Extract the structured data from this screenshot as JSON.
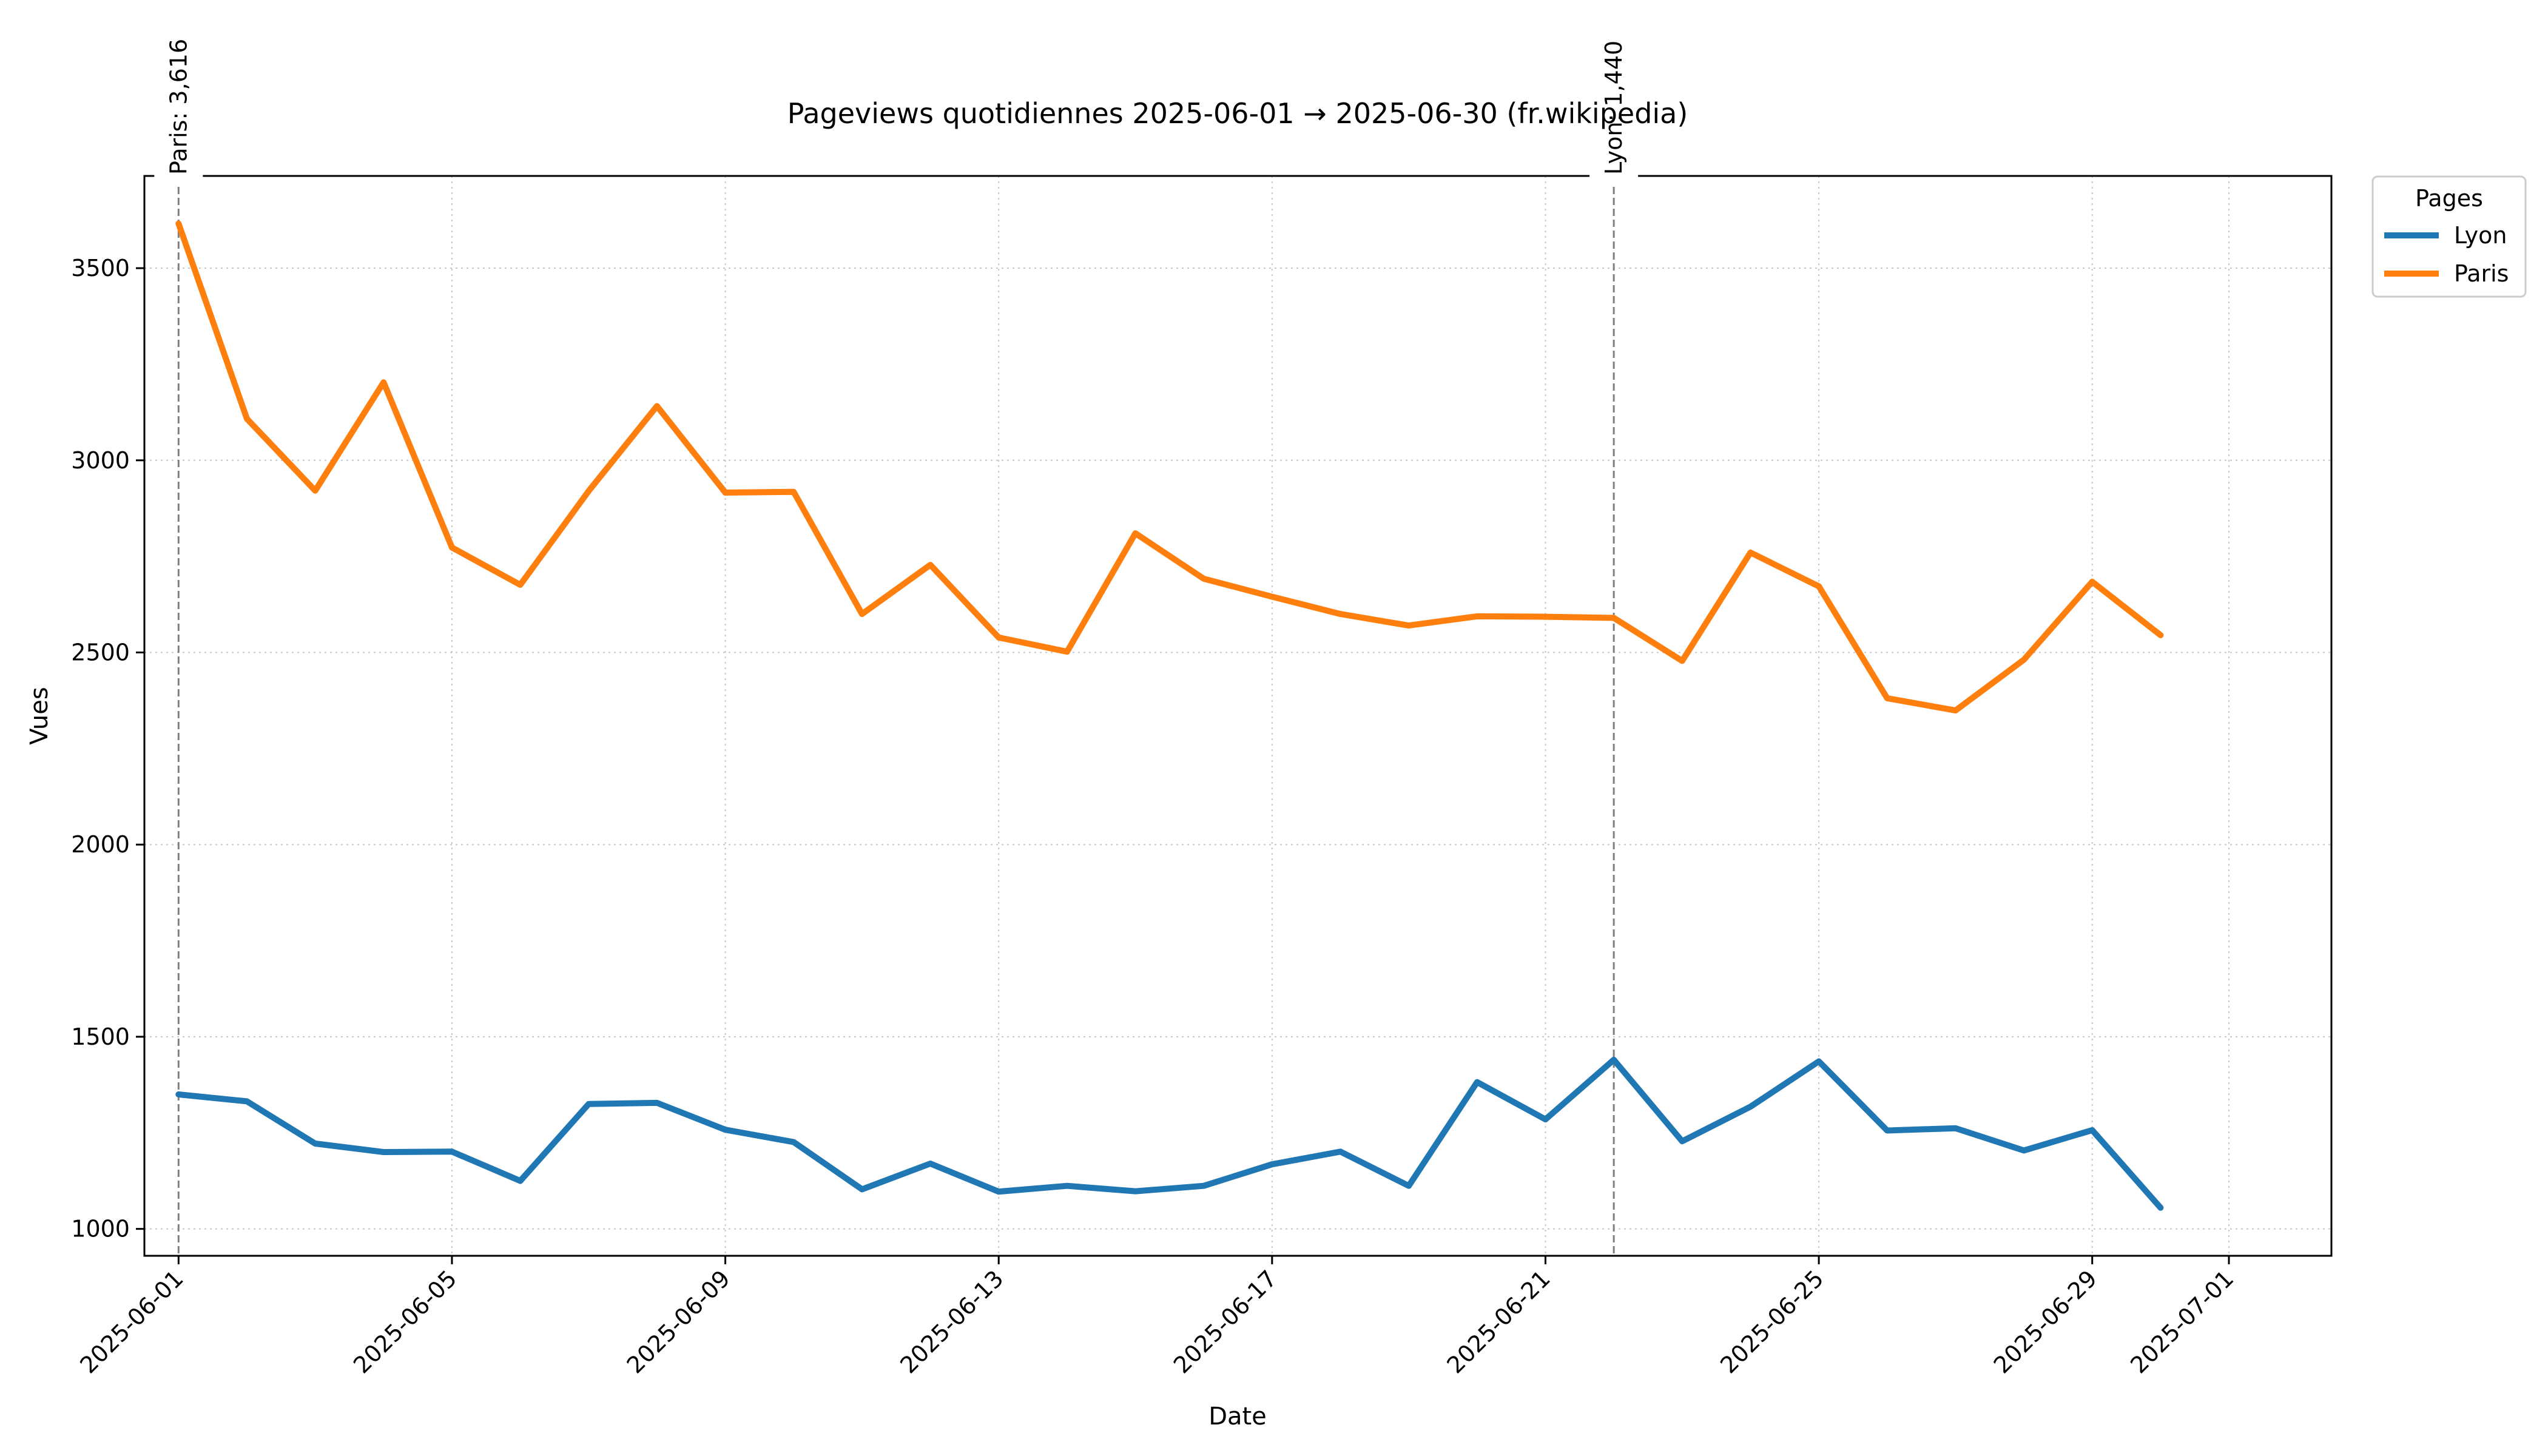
{
  "chart_data": {
    "type": "line",
    "title": "Pageviews quotidiennes 2025-06-01 → 2025-06-30 (fr.wikipedia)",
    "xlabel": "Date",
    "ylabel": "Vues",
    "x": [
      "2025-06-01",
      "2025-06-02",
      "2025-06-03",
      "2025-06-04",
      "2025-06-05",
      "2025-06-06",
      "2025-06-07",
      "2025-06-08",
      "2025-06-09",
      "2025-06-10",
      "2025-06-11",
      "2025-06-12",
      "2025-06-13",
      "2025-06-14",
      "2025-06-15",
      "2025-06-16",
      "2025-06-17",
      "2025-06-18",
      "2025-06-19",
      "2025-06-20",
      "2025-06-21",
      "2025-06-22",
      "2025-06-23",
      "2025-06-24",
      "2025-06-25",
      "2025-06-26",
      "2025-06-27",
      "2025-06-28",
      "2025-06-29",
      "2025-06-30"
    ],
    "xlim": [
      "2025-05-31T12:00",
      "2025-07-02T12:00"
    ],
    "x_ticks": [
      "2025-06-01",
      "2025-06-05",
      "2025-06-09",
      "2025-06-13",
      "2025-06-17",
      "2025-06-21",
      "2025-06-25",
      "2025-06-29",
      "2025-07-01"
    ],
    "ylim": [
      930,
      3740
    ],
    "y_ticks": [
      1000,
      1500,
      2000,
      2500,
      3000,
      3500
    ],
    "grid": true,
    "legend": {
      "title": "Pages",
      "placement": "outside-top-right"
    },
    "series": [
      {
        "name": "Lyon",
        "color": "#1f77b4",
        "values": [
          1350,
          1332,
          1222,
          1200,
          1201,
          1125,
          1325,
          1328,
          1258,
          1226,
          1103,
          1170,
          1097,
          1112,
          1098,
          1112,
          1168,
          1201,
          1112,
          1382,
          1285,
          1440,
          1228,
          1318,
          1436,
          1256,
          1262,
          1204,
          1257,
          1055
        ]
      },
      {
        "name": "Paris",
        "color": "#ff7f0e",
        "values": [
          3616,
          3108,
          2921,
          3203,
          2773,
          2676,
          2920,
          3141,
          2916,
          2918,
          2600,
          2728,
          2539,
          2502,
          2810,
          2692,
          2645,
          2600,
          2570,
          2594,
          2593,
          2590,
          2478,
          2760,
          2672,
          2381,
          2349,
          2481,
          2684,
          2545
        ]
      }
    ],
    "annotations": [
      {
        "x": "2025-06-01",
        "label": "Paris: 3,616"
      },
      {
        "x": "2025-06-22",
        "label": "Lyon: 1,440"
      }
    ]
  }
}
